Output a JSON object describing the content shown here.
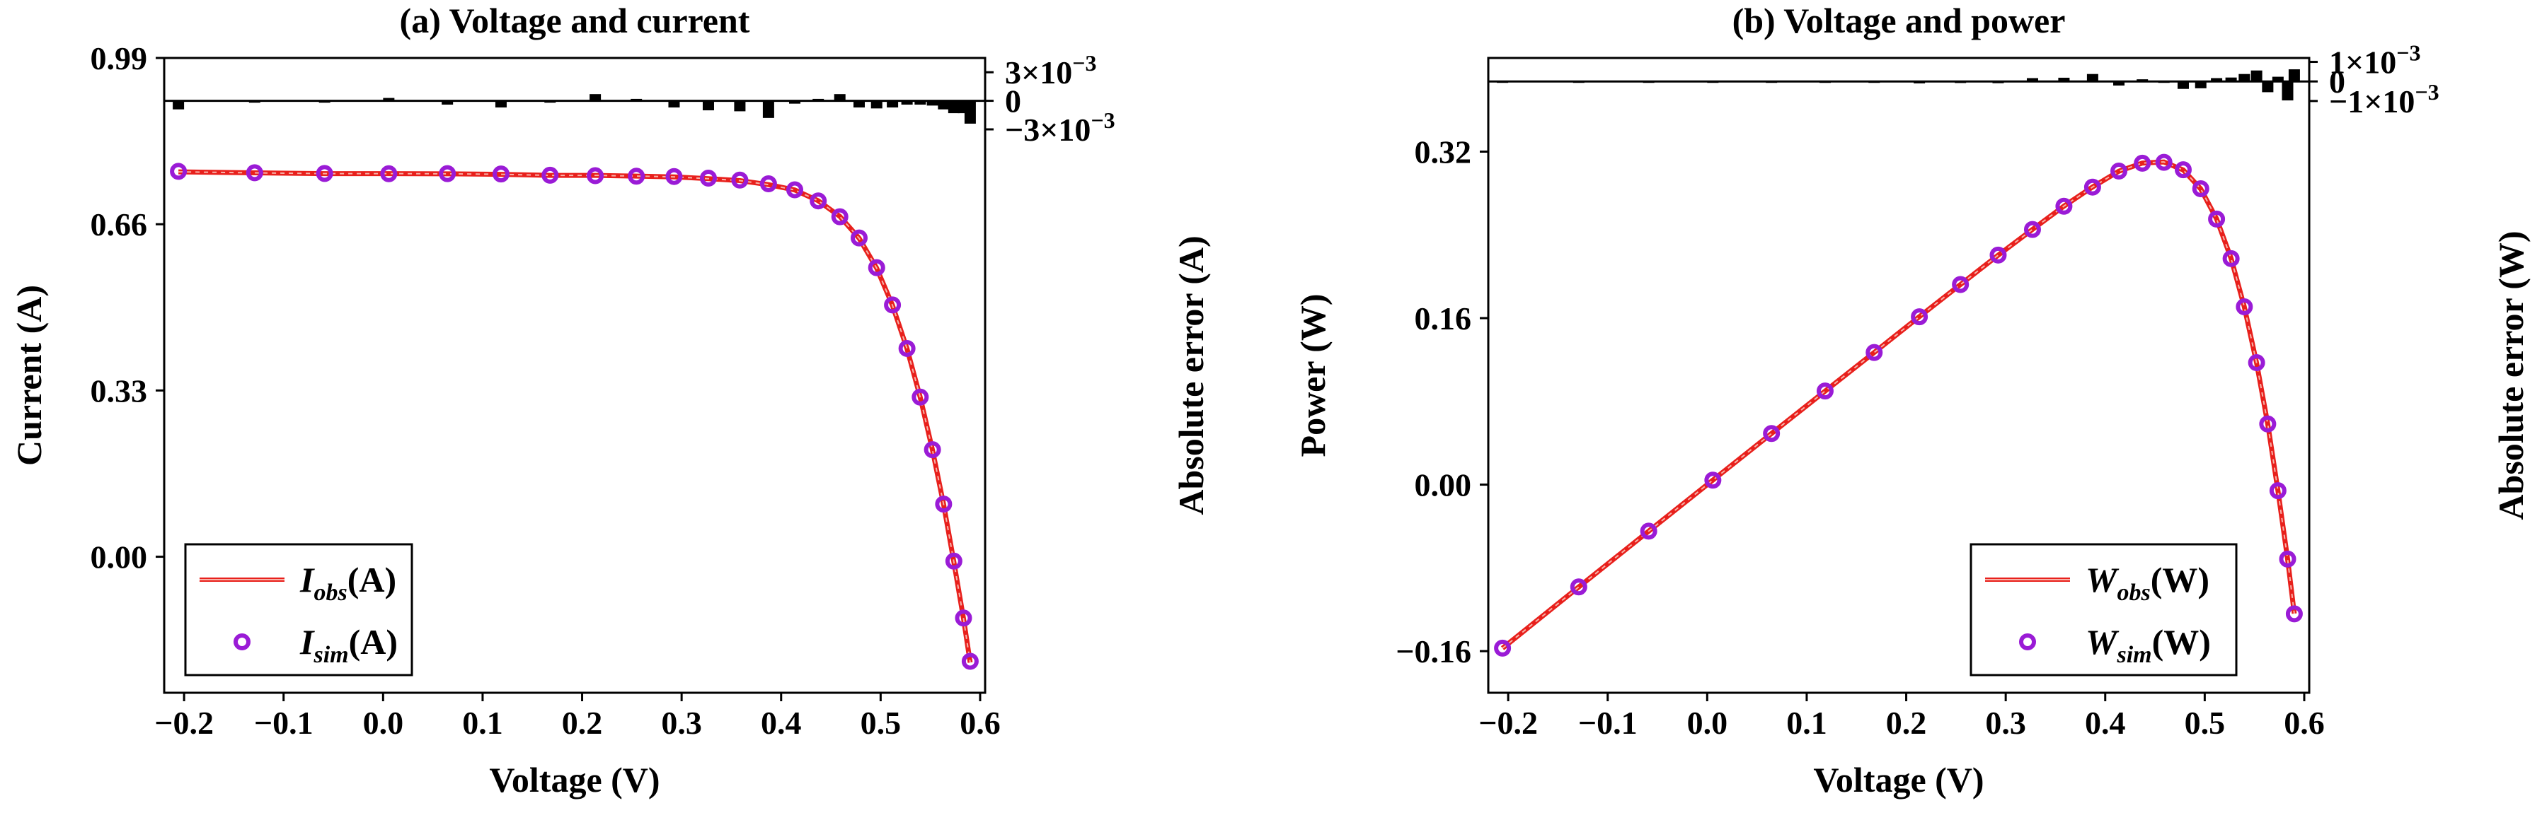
{
  "chart_data": [
    {
      "type": "line",
      "title": "(a) Voltage and current",
      "xlabel": "Voltage (V)",
      "ylabel": "Current (A)",
      "y2label": "Absolute error (A)",
      "xlim": [
        -0.22,
        0.605
      ],
      "ylim": [
        -0.27,
        0.99
      ],
      "xticks": [
        -0.2,
        -0.1,
        0.0,
        0.1,
        0.2,
        0.3,
        0.4,
        0.5,
        0.6
      ],
      "xtick_labels": [
        "−0.2",
        "−0.1",
        "0.0",
        "0.1",
        "0.2",
        "0.3",
        "0.4",
        "0.5",
        "0.6"
      ],
      "yticks": [
        0.0,
        0.33,
        0.66,
        0.99
      ],
      "ytick_labels": [
        "0.00",
        "0.33",
        "0.66",
        "0.99"
      ],
      "error_ylim": [
        -0.0105,
        0.0045
      ],
      "error_ticks": [
        -0.003,
        0,
        0.003
      ],
      "error_tick_labels": [
        "−3×10",
        "0",
        "3×10"
      ],
      "error_tick_exponents": [
        "−3",
        "",
        "−3"
      ],
      "legend": {
        "position": "bottom-left",
        "entries": [
          {
            "base": "I",
            "sub": "obs",
            "unit": "(A)",
            "style": "line",
            "color": "#e8201c"
          },
          {
            "base": "I",
            "sub": "sim",
            "unit": "(A)",
            "style": "marker",
            "color": "#9a1bd6"
          }
        ]
      },
      "voltage": [
        -0.2057,
        -0.1291,
        -0.0588,
        0.0057,
        0.0646,
        0.1185,
        0.1678,
        0.2132,
        0.2545,
        0.2924,
        0.3269,
        0.3585,
        0.3873,
        0.4137,
        0.4373,
        0.459,
        0.4784,
        0.496,
        0.5119,
        0.5265,
        0.5398,
        0.5521,
        0.5633,
        0.5736,
        0.5833,
        0.59
      ],
      "current_obs": [
        0.764,
        0.762,
        0.7605,
        0.7605,
        0.76,
        0.759,
        0.757,
        0.757,
        0.7555,
        0.754,
        0.7505,
        0.7465,
        0.7385,
        0.728,
        0.7065,
        0.6755,
        0.632,
        0.573,
        0.499,
        0.413,
        0.3165,
        0.212,
        0.1035,
        -0.01,
        -0.123,
        -0.21
      ],
      "current_sim": [
        0.7649,
        0.7622,
        0.7607,
        0.7602,
        0.7604,
        0.7597,
        0.7572,
        0.7563,
        0.7553,
        0.7547,
        0.7515,
        0.7476,
        0.7403,
        0.7283,
        0.7063,
        0.6748,
        0.6327,
        0.5738,
        0.4997,
        0.4134,
        0.3169,
        0.2125,
        0.1044,
        -0.0087,
        -0.1217,
        -0.2076
      ],
      "abs_error": [
        -0.0009,
        -0.0002,
        -0.0002,
        0.0003,
        -0.0004,
        -0.0007,
        -0.0002,
        0.0007,
        0.0002,
        -0.0007,
        -0.001,
        -0.0011,
        -0.0018,
        -0.0003,
        0.0002,
        0.0007,
        -0.0007,
        -0.0008,
        -0.0007,
        -0.0004,
        -0.0004,
        -0.0005,
        -0.0009,
        -0.0013,
        -0.0013,
        -0.0024
      ]
    },
    {
      "type": "line",
      "title": "(b) Voltage and power",
      "xlabel": "Voltage (V)",
      "ylabel": "Power (W)",
      "y2label": "Absolute error (W)",
      "xlim": [
        -0.22,
        0.605
      ],
      "ylim": [
        -0.2,
        0.41
      ],
      "xticks": [
        -0.2,
        -0.1,
        0.0,
        0.1,
        0.2,
        0.3,
        0.4,
        0.5,
        0.6
      ],
      "xtick_labels": [
        "−0.2",
        "−0.1",
        "0.0",
        "0.1",
        "0.2",
        "0.3",
        "0.4",
        "0.5",
        "0.6"
      ],
      "yticks": [
        -0.16,
        0.0,
        0.16,
        0.32
      ],
      "ytick_labels": [
        "−0.16",
        "0.00",
        "0.16",
        "0.32"
      ],
      "error_ylim": [
        -0.0061,
        0.0012
      ],
      "error_ticks": [
        -0.001,
        0,
        0.001
      ],
      "error_tick_labels": [
        "−1×10",
        "0",
        "1×10"
      ],
      "error_tick_exponents": [
        "−3",
        "",
        "−3"
      ],
      "legend": {
        "position": "bottom-right",
        "entries": [
          {
            "base": "W",
            "sub": "obs",
            "unit": "(W)",
            "style": "line",
            "color": "#e8201c"
          },
          {
            "base": "W",
            "sub": "sim",
            "unit": "(W)",
            "style": "marker",
            "color": "#9a1bd6"
          }
        ]
      },
      "voltage": [
        -0.2057,
        -0.1291,
        -0.0588,
        0.0057,
        0.0646,
        0.1185,
        0.1678,
        0.2132,
        0.2545,
        0.2924,
        0.3269,
        0.3585,
        0.3873,
        0.4137,
        0.4373,
        0.459,
        0.4784,
        0.496,
        0.5119,
        0.5265,
        0.5398,
        0.5521,
        0.5633,
        0.5736,
        0.5833,
        0.59
      ],
      "power_obs": [
        -0.1572,
        -0.0984,
        -0.0447,
        0.0043,
        0.0491,
        0.0899,
        0.127,
        0.1614,
        0.1923,
        0.2205,
        0.2453,
        0.2676,
        0.286,
        0.3012,
        0.309,
        0.3101,
        0.3024,
        0.2842,
        0.2554,
        0.2174,
        0.1708,
        0.117,
        0.0583,
        -0.0057,
        -0.0717,
        -0.1239
      ],
      "power_sim": [
        -0.1571,
        -0.0983,
        -0.0447,
        0.0043,
        0.0491,
        0.09,
        0.127,
        0.1613,
        0.1923,
        0.2206,
        0.2452,
        0.2675,
        0.2859,
        0.3013,
        0.3089,
        0.3097,
        0.3026,
        0.2843,
        0.2552,
        0.2172,
        0.1709,
        0.1172,
        0.0583,
        -0.0058,
        -0.0715,
        -0.1242
      ],
      "abs_error": [
        -5e-05,
        -5e-05,
        -4e-05,
        0.0,
        -4e-05,
        -5e-05,
        -2e-05,
        -0.0001,
        -8e-05,
        -9e-05,
        0.00017,
        0.00019,
        0.00038,
        -0.00021,
        0.00011,
        -6e-05,
        -0.00038,
        -0.00035,
        0.00017,
        0.0002,
        0.00038,
        0.00056,
        -0.00055,
        0.00024,
        -0.00097,
        0.00062
      ]
    }
  ]
}
